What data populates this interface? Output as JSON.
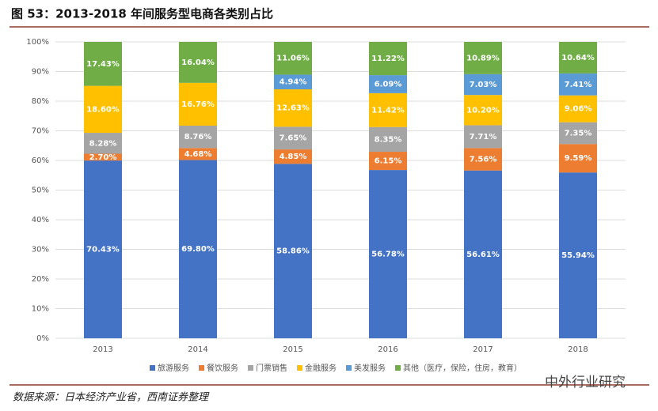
{
  "chart_data": {
    "type": "bar",
    "stacked": "percent",
    "title": "图 53：2013-2018 年间服务型电商各类别占比",
    "categories": [
      "2013",
      "2014",
      "2015",
      "2016",
      "2017",
      "2018"
    ],
    "series": [
      {
        "name": "旅游服务",
        "color": "#4472c4",
        "values": [
          70.43,
          69.8,
          58.86,
          56.78,
          56.61,
          55.94
        ],
        "value_labels": [
          "70.43%",
          "69.80%",
          "58.86%",
          "56.78%",
          "56.61%",
          "55.94%"
        ]
      },
      {
        "name": "餐饮服务",
        "color": "#ed7d31",
        "values": [
          2.7,
          4.68,
          4.85,
          6.15,
          7.56,
          9.59
        ],
        "value_labels": [
          "2.70%",
          "4.68%",
          "4.85%",
          "6.15%",
          "7.56%",
          "9.59%"
        ]
      },
      {
        "name": "门票销售",
        "color": "#a5a5a5",
        "values": [
          8.28,
          8.76,
          7.65,
          8.35,
          7.71,
          7.35
        ],
        "value_labels": [
          "8.28%",
          "8.76%",
          "7.65%",
          "8.35%",
          "7.71%",
          "7.35%"
        ]
      },
      {
        "name": "金融服务",
        "color": "#ffc000",
        "values": [
          18.6,
          16.76,
          12.63,
          11.42,
          10.2,
          9.06
        ],
        "value_labels": [
          "18.60%",
          "16.76%",
          "12.63%",
          "11.42%",
          "10.20%",
          "9.06%"
        ]
      },
      {
        "name": "美发服务",
        "color": "#5b9bd5",
        "values": [
          null,
          null,
          4.94,
          6.09,
          7.03,
          7.41
        ],
        "value_labels": [
          null,
          null,
          "4.94%",
          "6.09%",
          "7.03%",
          "7.41%"
        ]
      },
      {
        "name": "其他（医疗，保险，住房，教育）",
        "color": "#70ad47",
        "values": [
          17.43,
          16.04,
          11.06,
          11.22,
          10.89,
          10.64
        ],
        "value_labels": [
          "17.43%",
          "16.04%",
          "11.06%",
          "11.22%",
          "10.89%",
          "10.64%"
        ]
      }
    ],
    "ylim": [
      0,
      100
    ],
    "yticks": [
      {
        "value": 0,
        "label": "0%"
      },
      {
        "value": 10,
        "label": "10%"
      },
      {
        "value": 20,
        "label": "20%"
      },
      {
        "value": 30,
        "label": "30%"
      },
      {
        "value": 40,
        "label": "40%"
      },
      {
        "value": 50,
        "label": "50%"
      },
      {
        "value": 60,
        "label": "60%"
      },
      {
        "value": 70,
        "label": "70%"
      },
      {
        "value": 80,
        "label": "80%"
      },
      {
        "value": 90,
        "label": "90%"
      },
      {
        "value": 100,
        "label": "100%"
      }
    ],
    "grid": true,
    "legend": "bottom",
    "source": "数据来源：日本经济产业省，西南证券整理",
    "watermark": "中外行业研究"
  }
}
